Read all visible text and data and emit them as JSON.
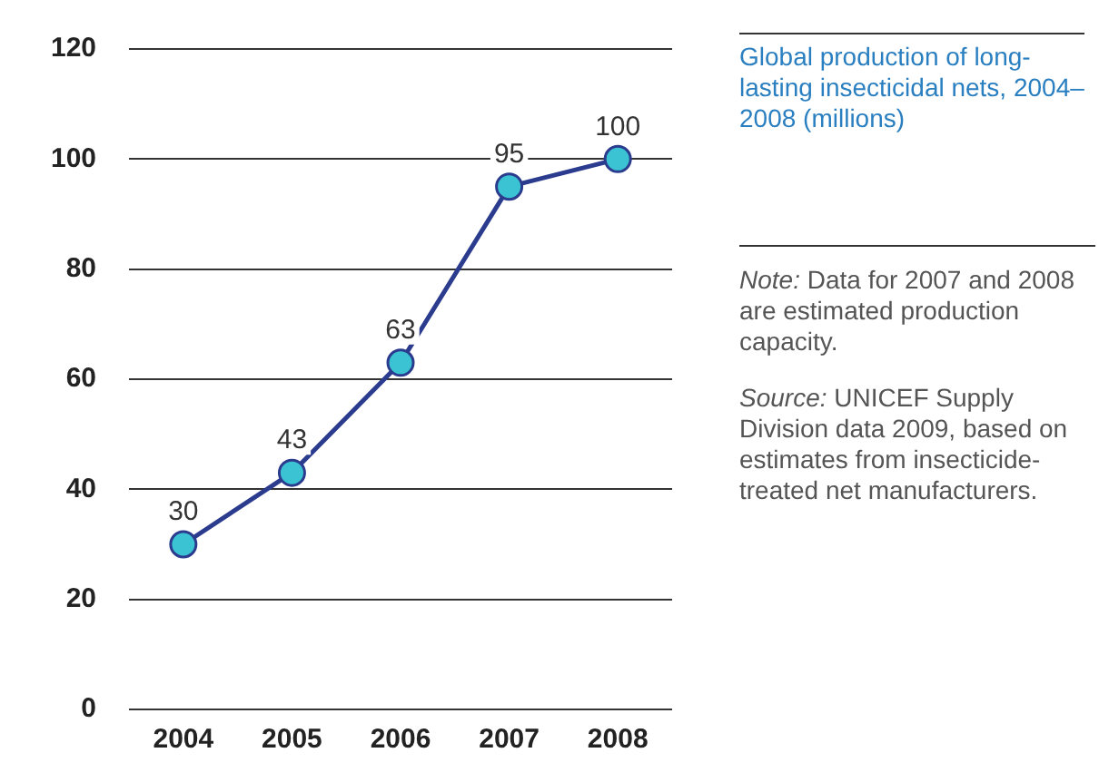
{
  "chart_data": {
    "type": "line",
    "title": "Global production of long-lasting insecticidal nets, 2004–2008 (millions)",
    "categories": [
      "2004",
      "2005",
      "2006",
      "2007",
      "2008"
    ],
    "series": [
      {
        "color": "#2b3c8e",
        "values": [
          30,
          43,
          63,
          95,
          100
        ]
      }
    ],
    "marker": "circle",
    "line_style": "solid",
    "data_labels": true,
    "ylim": [
      0,
      120
    ],
    "yticks": [
      0,
      20,
      40,
      60,
      80,
      100,
      120
    ],
    "grid": "y",
    "legend": false,
    "annotations": [
      "Note: Data for 2007 and 2008 are estimated production capacity.",
      "Source: UNICEF Supply Division data 2009, based on estimates from insecticide-treated net manufacturers."
    ]
  }
}
